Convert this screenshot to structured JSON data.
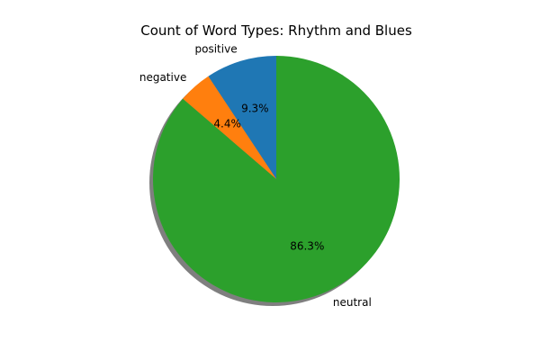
{
  "chart_data": {
    "type": "pie",
    "title": "Count of Word Types: Rhythm and Blues",
    "categories": [
      "positive",
      "negative",
      "neutral"
    ],
    "values": [
      9.3,
      4.4,
      86.3
    ],
    "labels": [
      "9.3%",
      "4.4%",
      "86.3%"
    ],
    "colors": [
      "#1f77b4",
      "#ff7f0e",
      "#2ca02c"
    ],
    "start_angle_deg": 90,
    "direction": "counterclockwise",
    "shadow": true
  }
}
